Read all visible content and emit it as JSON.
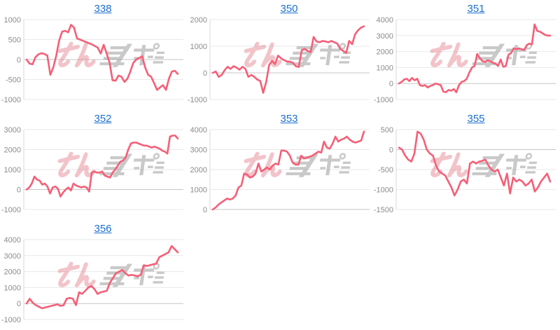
{
  "page": {
    "background": "#ffffff"
  },
  "theme": {
    "link_color": "#1a6fd0",
    "line_color": "#f55f77",
    "grid_color": "#e9e9e9",
    "zero_line_color": "#c6c6c6",
    "axis_color": "#d9d9d9",
    "tick_label_color": "#8c8c8c",
    "watermark_pink": "#e78b97",
    "watermark_gray": "#9e9e9e"
  },
  "watermark": {
    "pink_text": "みん",
    "gray_text": "レポ"
  },
  "chart_data": [
    {
      "type": "line",
      "title": "338",
      "ylim": [
        -1000,
        1000
      ],
      "yticks": [
        1000,
        500,
        0,
        -500,
        -1000
      ],
      "xlabel": "",
      "ylabel": "",
      "grid": true,
      "legend": "none",
      "values": [
        0,
        -100,
        -120,
        60,
        130,
        160,
        140,
        100,
        -380,
        -200,
        100,
        480,
        700,
        720,
        680,
        870,
        800,
        530,
        500,
        470,
        440,
        410,
        380,
        340,
        300,
        150,
        370,
        150,
        -80,
        -520,
        -530,
        -400,
        -430,
        -560,
        -480,
        -300,
        -80,
        0,
        40,
        80,
        -200,
        -380,
        -430,
        -590,
        -760,
        -700,
        -640,
        -760,
        -480,
        -300,
        -280,
        -360
      ]
    },
    {
      "type": "line",
      "title": "350",
      "ylim": [
        -1000,
        2000
      ],
      "yticks": [
        2000,
        1000,
        0,
        -1000
      ],
      "xlabel": "",
      "ylabel": "",
      "grid": true,
      "legend": "none",
      "values": [
        0,
        50,
        -150,
        -80,
        100,
        230,
        150,
        250,
        200,
        120,
        230,
        150,
        -150,
        -80,
        -150,
        -250,
        -300,
        -750,
        -350,
        300,
        450,
        330,
        650,
        550,
        480,
        430,
        420,
        380,
        250,
        220,
        850,
        900,
        820,
        780,
        1350,
        1180,
        1150,
        1200,
        1180,
        1150,
        1200,
        1150,
        1100,
        900,
        820,
        750,
        1200,
        1080,
        1450,
        1600,
        1700,
        1750
      ]
    },
    {
      "type": "line",
      "title": "351",
      "ylim": [
        -1000,
        4000
      ],
      "yticks": [
        4000,
        3000,
        2000,
        1000,
        0,
        -1000
      ],
      "xlabel": "",
      "ylabel": "",
      "grid": true,
      "legend": "none",
      "values": [
        0,
        100,
        250,
        300,
        150,
        350,
        200,
        300,
        -100,
        -150,
        -100,
        -250,
        -150,
        -100,
        0,
        -50,
        -100,
        -500,
        -550,
        -400,
        -450,
        -350,
        -550,
        -100,
        100,
        150,
        300,
        700,
        1000,
        1100,
        1850,
        1600,
        1400,
        1350,
        1450,
        1400,
        1300,
        1250,
        1100,
        1500,
        1050,
        1100,
        1800,
        1900,
        2200,
        2150,
        2200,
        2150,
        2100,
        2400,
        2500,
        2450,
        3700,
        3300,
        3250,
        3150,
        3050,
        3000,
        3000
      ]
    },
    {
      "type": "line",
      "title": "352",
      "ylim": [
        -1000,
        3000
      ],
      "yticks": [
        3000,
        2000,
        1000,
        0,
        -1000
      ],
      "xlabel": "",
      "ylabel": "",
      "grid": true,
      "legend": "none",
      "values": [
        0,
        100,
        300,
        650,
        500,
        450,
        250,
        300,
        150,
        -200,
        100,
        150,
        50,
        -350,
        -150,
        0,
        100,
        -50,
        300,
        200,
        150,
        100,
        150,
        100,
        -100,
        850,
        900,
        850,
        850,
        900,
        700,
        650,
        600,
        850,
        1000,
        1200,
        1400,
        1450,
        1600,
        2000,
        2300,
        2350,
        2350,
        2300,
        2250,
        2200,
        2200,
        2150,
        2100,
        2150,
        2100,
        2050,
        1950,
        1900,
        1800,
        2650,
        2700,
        2700,
        2550
      ]
    },
    {
      "type": "line",
      "title": "353",
      "ylim": [
        0,
        4000
      ],
      "yticks": [
        4000,
        3000,
        2000,
        1000,
        0
      ],
      "xlabel": "",
      "ylabel": "",
      "grid": true,
      "legend": "none",
      "values": [
        0,
        100,
        250,
        350,
        450,
        550,
        500,
        550,
        700,
        1100,
        1200,
        1800,
        1750,
        1600,
        1650,
        1800,
        2300,
        1900,
        2000,
        2100,
        2000,
        2200,
        2300,
        2250,
        2950,
        2950,
        2900,
        2700,
        2350,
        2250,
        2250,
        2700,
        2550,
        2600,
        2650,
        2700,
        2800,
        2900,
        2850,
        3400,
        3100,
        3050,
        3300,
        3650,
        3400,
        3500,
        3550,
        3650,
        3500,
        3400,
        3350,
        3400,
        3450,
        3900
      ]
    },
    {
      "type": "line",
      "title": "355",
      "ylim": [
        -1500,
        500
      ],
      "yticks": [
        500,
        0,
        -500,
        -1000,
        -1500
      ],
      "xlabel": "",
      "ylabel": "",
      "grid": true,
      "legend": "none",
      "values": [
        50,
        0,
        -150,
        -250,
        -300,
        -100,
        450,
        400,
        250,
        0,
        -100,
        -150,
        -400,
        -550,
        -600,
        -650,
        -800,
        -950,
        -1150,
        -1000,
        -800,
        -750,
        -850,
        -350,
        -300,
        -350,
        -300,
        -280,
        -250,
        -400,
        -500,
        -550,
        -500,
        -700,
        -900,
        -600,
        -1100,
        -700,
        -800,
        -750,
        -800,
        -900,
        -850,
        -750,
        -1050,
        -950,
        -800,
        -700,
        -600,
        -800
      ]
    },
    {
      "type": "line",
      "title": "356",
      "ylim": [
        -1000,
        4000
      ],
      "yticks": [
        4000,
        3000,
        2000,
        1000,
        0,
        -1000
      ],
      "xlabel": "",
      "ylabel": "",
      "grid": true,
      "legend": "none",
      "values": [
        0,
        300,
        50,
        -100,
        -200,
        -300,
        -250,
        -200,
        -150,
        -100,
        -50,
        -150,
        -100,
        300,
        350,
        300,
        -100,
        700,
        600,
        800,
        1000,
        1100,
        900,
        600,
        700,
        750,
        800,
        1300,
        1600,
        1900,
        2000,
        2100,
        1900,
        1750,
        1800,
        1750,
        1700,
        1800,
        2400,
        2350,
        2400,
        2450,
        2500,
        2900,
        3000,
        3100,
        3200,
        3600,
        3400,
        3200
      ]
    }
  ]
}
